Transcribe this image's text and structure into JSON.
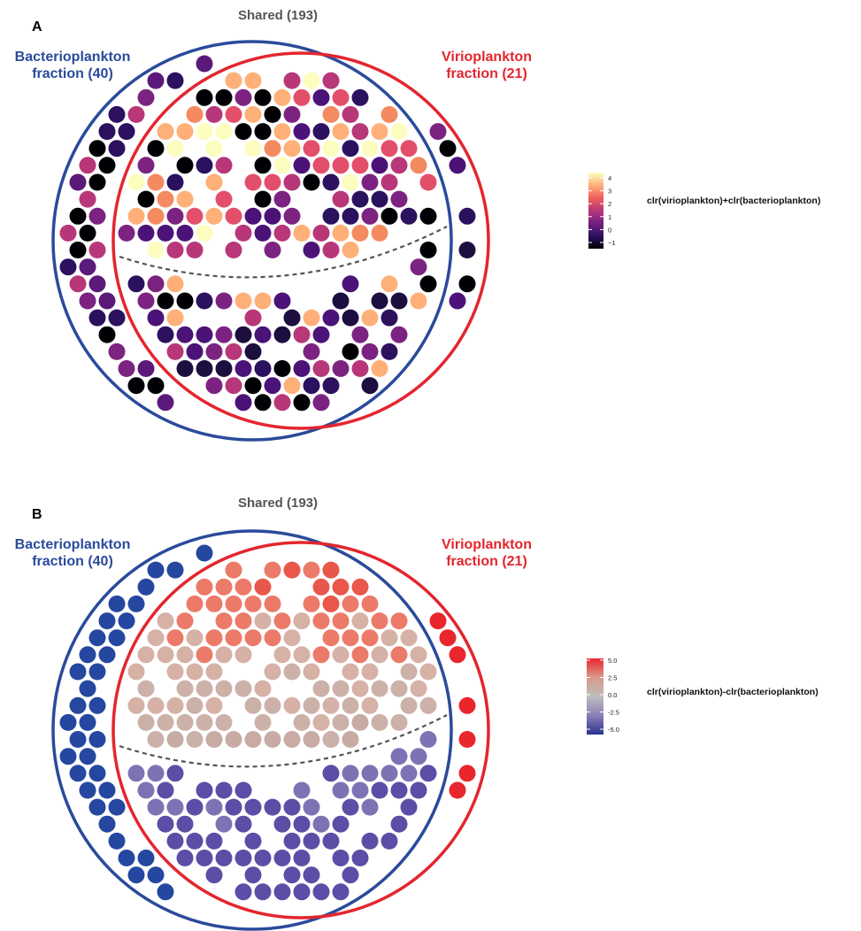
{
  "chart_data": [
    {
      "type": "scatter",
      "panel": "A",
      "sets": {
        "shared": "Shared (193)",
        "left_line1": "Bacterioplankton",
        "left_line2": "fraction (40)",
        "right_line1": "Virioplankton",
        "right_line2": "fraction (21)"
      },
      "counts": {
        "bacterioplankton_only": 40,
        "shared": 193,
        "virioplankton_only": 21
      },
      "legend": {
        "title": "clr(virioplankton)+clr(bacterioplankton)",
        "ticks": [
          "4",
          "3",
          "2",
          "1",
          "0",
          "−1"
        ],
        "range": [
          -1.5,
          4.5
        ],
        "colors": [
          "#000004",
          "#2c115f",
          "#721f81",
          "#b73779",
          "#f1605d",
          "#feb078",
          "#fcfdbf"
        ]
      },
      "color_by_region": {
        "left": [
          "#000004",
          "#2c115f",
          "#5b1a7a",
          "#7c2382",
          "#b73779"
        ],
        "shared_upper": [
          "#000004",
          "#2c115f",
          "#4b1378",
          "#7c2382",
          "#b73779",
          "#e34f6b",
          "#f48a5f",
          "#feb078",
          "#fcfdbf"
        ],
        "shared_lower": [
          "#000004",
          "#1c0e3f",
          "#2c115f",
          "#4b1378",
          "#7c2382",
          "#b73779",
          "#feb078"
        ],
        "right": [
          "#000004",
          "#1c0e3f",
          "#2c115f",
          "#4b1378",
          "#7c2382"
        ]
      }
    },
    {
      "type": "scatter",
      "panel": "B",
      "sets": {
        "shared": "Shared (193)",
        "left_line1": "Bacterioplankton",
        "left_line2": "fraction (40)",
        "right_line1": "Virioplankton",
        "right_line2": "fraction (21)"
      },
      "counts": {
        "bacterioplankton_only": 40,
        "shared": 193,
        "virioplankton_only": 21
      },
      "legend": {
        "title": "clr(virioplankton)-clr(bacterioplankton)",
        "ticks": [
          "5.0",
          "2.5",
          "0.0",
          "-2.5",
          "-5.0"
        ],
        "range": [
          -5.0,
          5.0
        ],
        "colors": [
          "#e8262c",
          "#d99a8a",
          "#bdbdbd",
          "#8e7fb8",
          "#27328f"
        ]
      },
      "color_by_region": {
        "left": [
          "#2547a0"
        ],
        "shared_upper": [
          "#e8574a",
          "#ec7a68",
          "#d6b1a6",
          "#ccb1a9",
          "#c8aba3",
          "#bcb8b6"
        ],
        "shared_lower": [
          "#b8b6bb",
          "#ada6c4",
          "#9b8fc0",
          "#7f72b4",
          "#5a4ea6"
        ],
        "right": [
          "#e8262c"
        ]
      }
    }
  ]
}
